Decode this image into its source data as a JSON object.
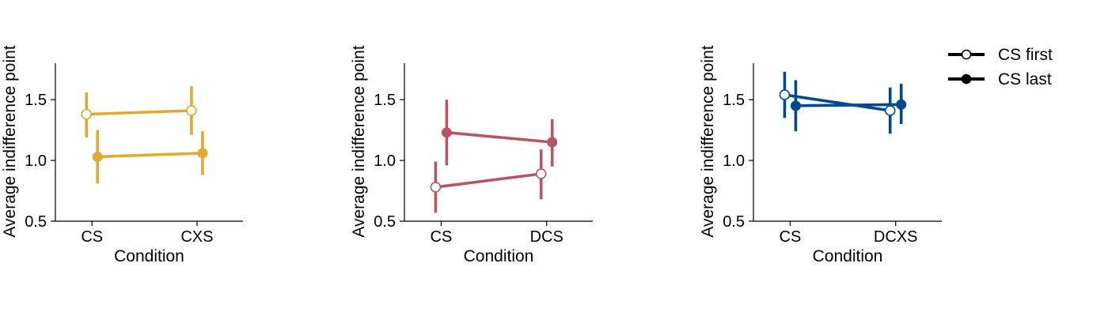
{
  "chart_data": [
    {
      "type": "line",
      "title": "",
      "xlabel": "Condition",
      "ylabel": "Average indifference point",
      "categories": [
        "CS",
        "CXS"
      ],
      "ylim": [
        0.5,
        1.8
      ],
      "yticks": [
        "0.5",
        "1.0",
        "1.5"
      ],
      "color": "#E0A92F",
      "series": [
        {
          "name": "CS first",
          "marker": "open-circle",
          "values": [
            1.38,
            1.41
          ],
          "err_low": [
            1.19,
            1.21
          ],
          "err_high": [
            1.56,
            1.61
          ]
        },
        {
          "name": "CS last",
          "marker": "filled-circle",
          "values": [
            1.03,
            1.06
          ],
          "err_low": [
            0.81,
            0.88
          ],
          "err_high": [
            1.25,
            1.24
          ]
        }
      ]
    },
    {
      "type": "line",
      "title": "",
      "xlabel": "Condition",
      "ylabel": "Average indifference point",
      "categories": [
        "CS",
        "DCS"
      ],
      "ylim": [
        0.5,
        1.8
      ],
      "yticks": [
        "0.5",
        "1.0",
        "1.5"
      ],
      "color": "#B85565",
      "series": [
        {
          "name": "CS first",
          "marker": "open-circle",
          "values": [
            0.78,
            0.89
          ],
          "err_low": [
            0.57,
            0.68
          ],
          "err_high": [
            0.99,
            1.09
          ]
        },
        {
          "name": "CS last",
          "marker": "filled-circle",
          "values": [
            1.23,
            1.15
          ],
          "err_low": [
            0.96,
            0.95
          ],
          "err_high": [
            1.5,
            1.34
          ]
        }
      ]
    },
    {
      "type": "line",
      "title": "",
      "xlabel": "Condition",
      "ylabel": "Average indifference point",
      "categories": [
        "CS",
        "DCXS"
      ],
      "ylim": [
        0.5,
        1.8
      ],
      "yticks": [
        "0.5",
        "1.0",
        "1.5"
      ],
      "color": "#004A8C",
      "series": [
        {
          "name": "CS first",
          "marker": "open-circle",
          "values": [
            1.54,
            1.41
          ],
          "err_low": [
            1.35,
            1.22
          ],
          "err_high": [
            1.73,
            1.6
          ]
        },
        {
          "name": "CS last",
          "marker": "filled-circle",
          "values": [
            1.45,
            1.46
          ],
          "err_low": [
            1.24,
            1.3
          ],
          "err_high": [
            1.66,
            1.63
          ]
        }
      ]
    }
  ],
  "legend": {
    "placement": "right",
    "entries": [
      {
        "label": "CS first",
        "marker": "open-circle"
      },
      {
        "label": "CS last",
        "marker": "filled-circle"
      }
    ],
    "color": "#000000"
  }
}
